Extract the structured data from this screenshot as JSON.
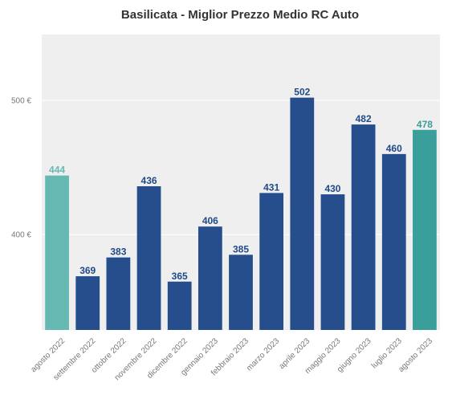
{
  "chart_data": {
    "type": "bar",
    "title": "Basilicata - Miglior Prezzo Medio RC Auto",
    "xlabel": "",
    "ylabel": "",
    "ylim": [
      329,
      549
    ],
    "yticks": [
      400,
      500
    ],
    "ytick_labels": [
      "400 €",
      "500 €"
    ],
    "grid": true,
    "categories": [
      "agosto 2022",
      "settembre 2022",
      "ottobre 2022",
      "novembre 2022",
      "dicembre 2022",
      "gennaio 2023",
      "febbraio 2023",
      "marzo 2023",
      "aprile 2023",
      "maggio 2023",
      "giugno 2023",
      "luglio 2023",
      "agosto 2023"
    ],
    "values": [
      444,
      369,
      383,
      436,
      365,
      406,
      385,
      431,
      502,
      430,
      482,
      460,
      478
    ],
    "value_labels": [
      "444",
      "369",
      "383",
      "436",
      "365",
      "406",
      "385",
      "431",
      "502",
      "430",
      "482",
      "460",
      "478"
    ],
    "bar_colors": [
      "#66b8b2",
      "#264e8c",
      "#264e8c",
      "#264e8c",
      "#264e8c",
      "#264e8c",
      "#264e8c",
      "#264e8c",
      "#264e8c",
      "#264e8c",
      "#264e8c",
      "#264e8c",
      "#3a9e9a"
    ],
    "label_colors": [
      "#66b8b2",
      "#1f4a8a",
      "#1f4a8a",
      "#1f4a8a",
      "#1f4a8a",
      "#1f4a8a",
      "#1f4a8a",
      "#1f4a8a",
      "#1f4a8a",
      "#1f4a8a",
      "#1f4a8a",
      "#1f4a8a",
      "#3a9e9a"
    ],
    "plot_background": "#efefef",
    "grid_color": "#ffffff"
  }
}
